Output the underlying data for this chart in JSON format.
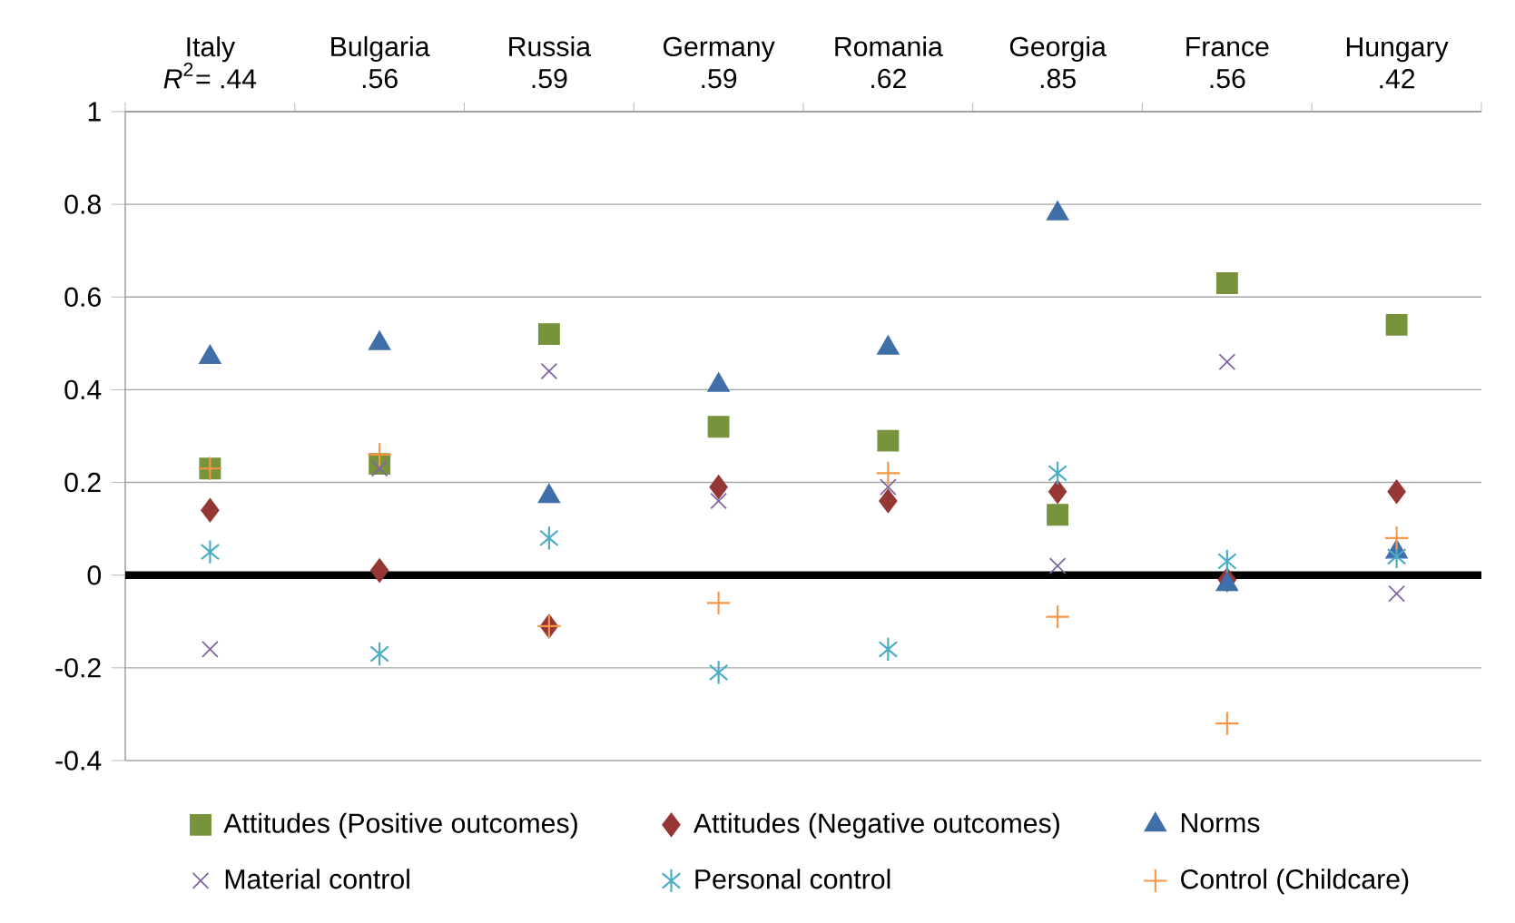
{
  "chart_data": {
    "type": "scatter",
    "categories": [
      "Italy",
      "Bulgaria",
      "Russia",
      "Germany",
      "Romania",
      "Georgia",
      "France",
      "Hungary"
    ],
    "annotations": [
      "*R*$^{2}$= .44",
      ".56",
      ".59",
      ".59",
      ".62",
      ".85",
      ".56",
      ".42"
    ],
    "ylim": [
      -0.4,
      1
    ],
    "yticks": [
      -0.4,
      -0.2,
      0,
      0.2,
      0.4,
      0.6,
      0.8,
      1
    ],
    "grid": "y",
    "legend": "bottom",
    "ref_lines": [
      {
        "axis": "y",
        "value": 0,
        "color": "#000000"
      }
    ],
    "series": [
      {
        "name": "Attitudes (Positive outcomes)",
        "color": "#77933c",
        "marker": "square",
        "values": [
          0.23,
          0.24,
          0.52,
          0.32,
          0.29,
          0.13,
          0.63,
          0.54
        ]
      },
      {
        "name": "Attitudes (Negative outcomes)",
        "color": "#953735",
        "marker": "diamond",
        "values": [
          0.14,
          0.01,
          -0.11,
          0.19,
          0.16,
          0.18,
          -0.01,
          0.18
        ]
      },
      {
        "name": "Norms",
        "color": "#3f6ea8",
        "marker": "triangle",
        "values": [
          0.47,
          0.5,
          0.17,
          0.41,
          0.49,
          0.78,
          -0.02,
          0.05
        ]
      },
      {
        "name": "Material control",
        "color": "#8064a2",
        "marker": "cross",
        "values": [
          -0.16,
          0.23,
          0.44,
          0.16,
          0.19,
          0.02,
          0.46,
          -0.04
        ]
      },
      {
        "name": "Personal control",
        "color": "#4bacc6",
        "values": [
          0.05,
          -0.17,
          0.08,
          -0.21,
          -0.16,
          0.22,
          0.03,
          0.04
        ]
      },
      {
        "name": "Control (Childcare)",
        "color": "#f79646",
        "values": [
          0.23,
          0.26,
          -0.11,
          -0.06,
          0.22,
          -0.09,
          -0.32,
          0.08
        ]
      }
    ]
  }
}
